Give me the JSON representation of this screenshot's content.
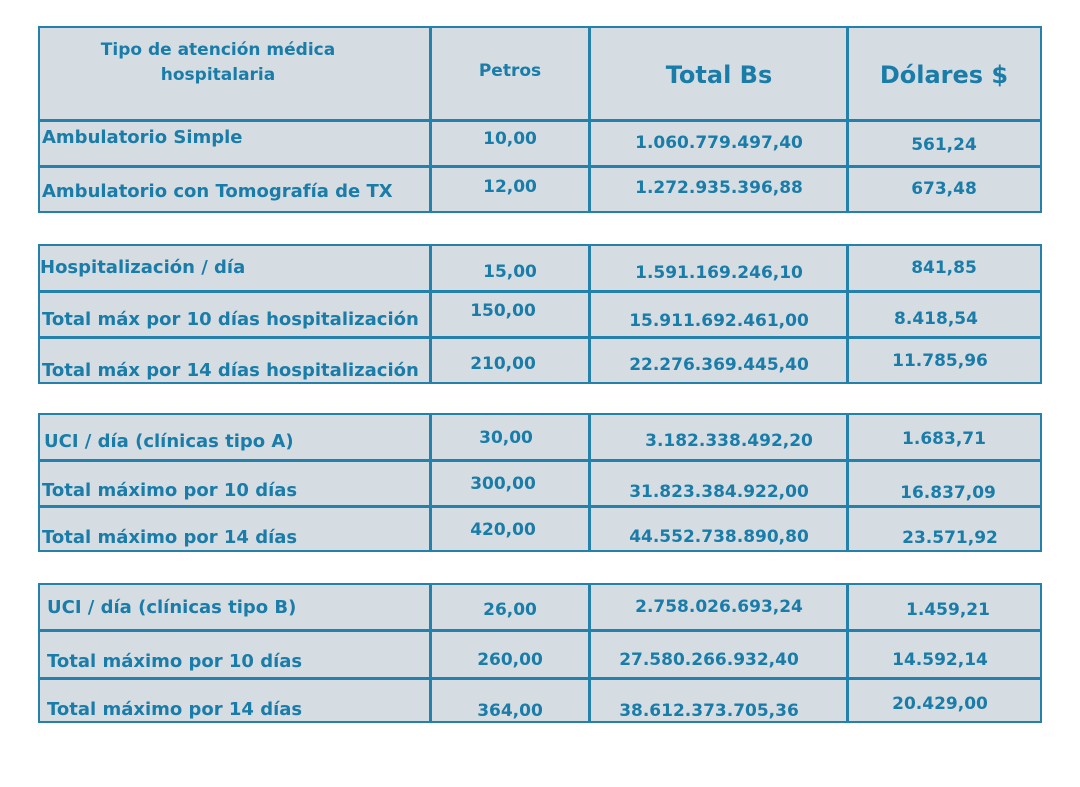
{
  "header": {
    "col_type": "Tipo de atención médica hospitalaria",
    "col_petros": "Petros",
    "col_bs": "Total Bs",
    "col_usd": "Dólares $"
  },
  "groups": [
    {
      "rows": [
        {
          "label": "Ambulatorio Simple",
          "petros": "10,00",
          "bs": "1.060.779.497,40",
          "usd": "561,24"
        },
        {
          "label": "Ambulatorio con Tomografía de TX",
          "petros": "12,00",
          "bs": "1.272.935.396,88",
          "usd": "673,48"
        }
      ]
    },
    {
      "rows": [
        {
          "label": "Hospitalización / día",
          "petros": "15,00",
          "bs": "1.591.169.246,10",
          "usd": "841,85"
        },
        {
          "label": "Total máx por 10 días hospitalización",
          "petros": "150,00",
          "bs": "15.911.692.461,00",
          "usd": "8.418,54"
        },
        {
          "label": "Total máx por 14 días hospitalización",
          "petros": "210,00",
          "bs": "22.276.369.445,40",
          "usd": "11.785,96"
        }
      ]
    },
    {
      "rows": [
        {
          "label": "UCI / día (clínicas tipo A)",
          "petros": "30,00",
          "bs": "3.182.338.492,20",
          "usd": "1.683,71"
        },
        {
          "label": "Total máximo por 10 días",
          "petros": "300,00",
          "bs": "31.823.384.922,00",
          "usd": "16.837,09"
        },
        {
          "label": "Total máximo por 14 días",
          "petros": "420,00",
          "bs": "44.552.738.890,80",
          "usd": "23.571,92"
        }
      ]
    },
    {
      "rows": [
        {
          "label": "UCI / día (clínicas tipo B)",
          "petros": "26,00",
          "bs": "2.758.026.693,24",
          "usd": "1.459,21"
        },
        {
          "label": "Total máximo por 10 días",
          "petros": "260,00",
          "bs": "27.580.266.932,40",
          "usd": "14.592,14"
        },
        {
          "label": "Total máximo por 14 días",
          "petros": "364,00",
          "bs": "38.612.373.705,36",
          "usd": "20.429,00"
        }
      ]
    }
  ]
}
